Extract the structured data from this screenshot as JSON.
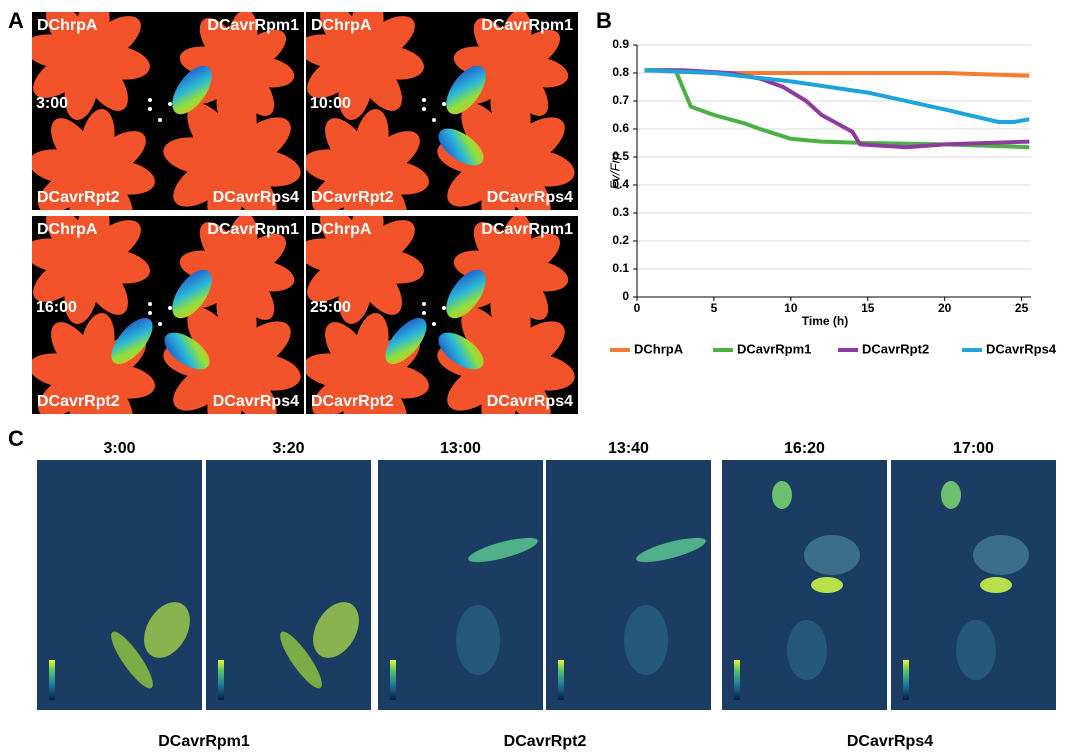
{
  "figure": {
    "panel_labels": [
      "A",
      "B",
      "C"
    ]
  },
  "panel_a": {
    "strains": [
      "DChrpA",
      "DCavrRpm1",
      "DCavrRpt2",
      "DCavrRps4"
    ],
    "times": [
      "3:00",
      "10:00",
      "16:00",
      "25:00"
    ]
  },
  "chart_data": {
    "type": "line",
    "y_label": "Fv/Fm",
    "x_label": "Time (h)",
    "xlim": [
      0,
      26
    ],
    "ylim": [
      0,
      0.9
    ],
    "xticks": [
      0,
      5,
      10,
      15,
      20,
      25
    ],
    "yticks": [
      0,
      0.1,
      0.2,
      0.3,
      0.4,
      0.5,
      0.6,
      0.7,
      0.8,
      0.9
    ],
    "grid": true,
    "legend": "bottom",
    "series": [
      {
        "name": "DChrpA",
        "color": "#f47b30",
        "x": [
          0.5,
          5,
          10,
          15,
          20,
          25.5
        ],
        "values": [
          0.81,
          0.8,
          0.8,
          0.8,
          0.8,
          0.79
        ]
      },
      {
        "name": "DCavrRpm1",
        "color": "#4cb144",
        "x": [
          0.5,
          2.5,
          3.5,
          5,
          7,
          8,
          10,
          12,
          15,
          20,
          25.5
        ],
        "values": [
          0.81,
          0.81,
          0.68,
          0.65,
          0.62,
          0.6,
          0.565,
          0.555,
          0.55,
          0.545,
          0.535
        ]
      },
      {
        "name": "DCavrRpt2",
        "color": "#8e3a9e",
        "x": [
          0.5,
          3,
          6,
          8,
          9.5,
          11,
          12,
          13,
          14,
          14.5,
          17.5,
          20,
          25.5
        ],
        "values": [
          0.81,
          0.81,
          0.8,
          0.78,
          0.75,
          0.7,
          0.65,
          0.62,
          0.59,
          0.545,
          0.535,
          0.545,
          0.555
        ]
      },
      {
        "name": "DCavrRps4",
        "color": "#1fa3dc",
        "x": [
          0.5,
          5,
          10,
          15,
          20,
          23.5,
          24.5,
          25.5
        ],
        "values": [
          0.81,
          0.8,
          0.77,
          0.73,
          0.67,
          0.625,
          0.625,
          0.635
        ]
      }
    ]
  },
  "panel_c": {
    "times": [
      "3:00",
      "3:20",
      "13:00",
      "13:40",
      "16:20",
      "17:00"
    ],
    "groups": [
      "DCavrRpm1",
      "DCavrRpt2",
      "DCavrRps4"
    ]
  }
}
